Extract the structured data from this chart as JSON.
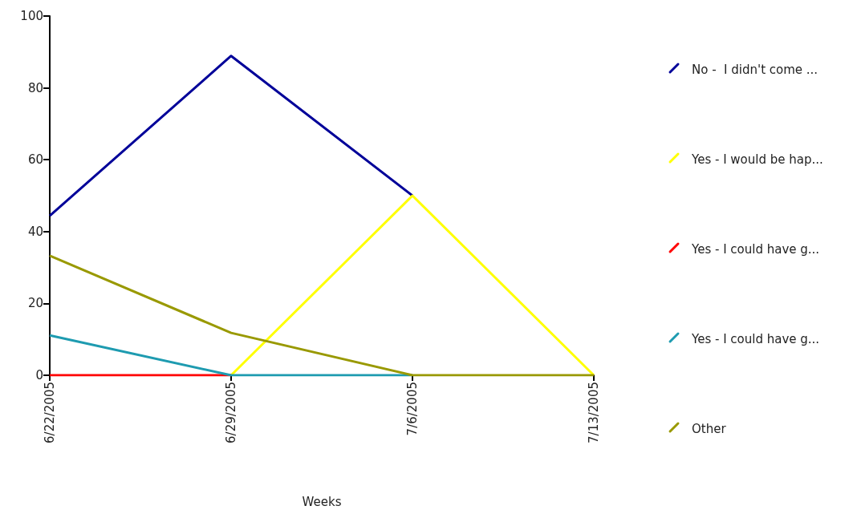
{
  "chart_data": {
    "type": "line",
    "xlabel": "Weeks",
    "categories": [
      "6/22/2005",
      "6/29/2005",
      "7/6/2005",
      "7/13/2005"
    ],
    "series": [
      {
        "name": "No -  I didn't come ...",
        "color": "#000099",
        "values": [
          44.4,
          88.9,
          50,
          null
        ]
      },
      {
        "name": "Yes - I would be hap...",
        "color": "#ffff00",
        "values": [
          null,
          0,
          50,
          0
        ]
      },
      {
        "name": "Yes - I could have g...",
        "color": "#ff0000",
        "values": [
          0,
          0,
          null,
          null
        ]
      },
      {
        "name": "Yes - I could have g...",
        "color": "#1e9bb0",
        "values": [
          11.1,
          0,
          0,
          null
        ]
      },
      {
        "name": "Other",
        "color": "#999900",
        "values": [
          33.3,
          11.8,
          0,
          0
        ]
      }
    ],
    "ylim": [
      0,
      100
    ],
    "yticks": [
      0,
      20,
      40,
      60,
      80,
      100
    ],
    "grid": false,
    "legend": "right",
    "marker": "none",
    "line_style": "solid"
  }
}
